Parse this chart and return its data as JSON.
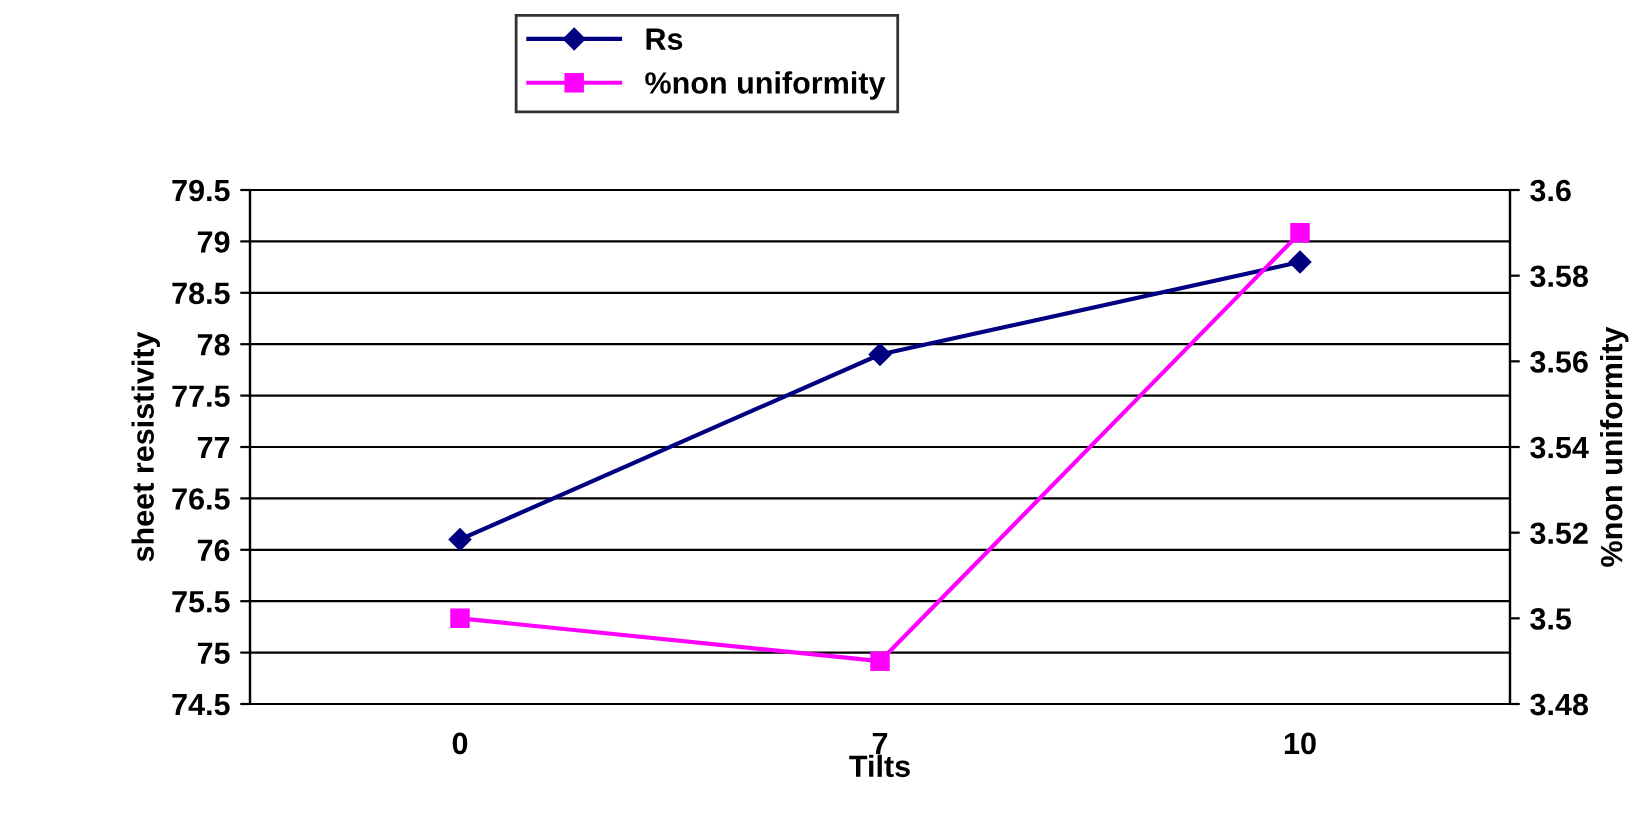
{
  "chart_data": {
    "type": "line",
    "xlabel": "Tilts",
    "ylabel": "sheet resistivity",
    "y2label": "%non uniformity",
    "categories": [
      "0",
      "7",
      "10"
    ],
    "series": [
      {
        "name": "Rs",
        "color": "#000080",
        "values": [
          76.1,
          77.9,
          78.8
        ],
        "marker": "diamond"
      },
      {
        "name": "%non uniformity",
        "color": "#ff00ff",
        "values": [
          3.5,
          3.49,
          3.59
        ],
        "marker": "square",
        "axis": "y2"
      }
    ],
    "ylim": [
      74.5,
      79.5
    ],
    "yticks": [
      74.5,
      75,
      75.5,
      76,
      76.5,
      77,
      77.5,
      78,
      78.5,
      79,
      79.5
    ],
    "y2lim": [
      3.48,
      3.6
    ],
    "y2ticks": [
      3.48,
      3.5,
      3.52,
      3.54,
      3.56,
      3.58,
      3.6
    ],
    "grid": "y",
    "legend": "top",
    "line_style": "solid"
  }
}
